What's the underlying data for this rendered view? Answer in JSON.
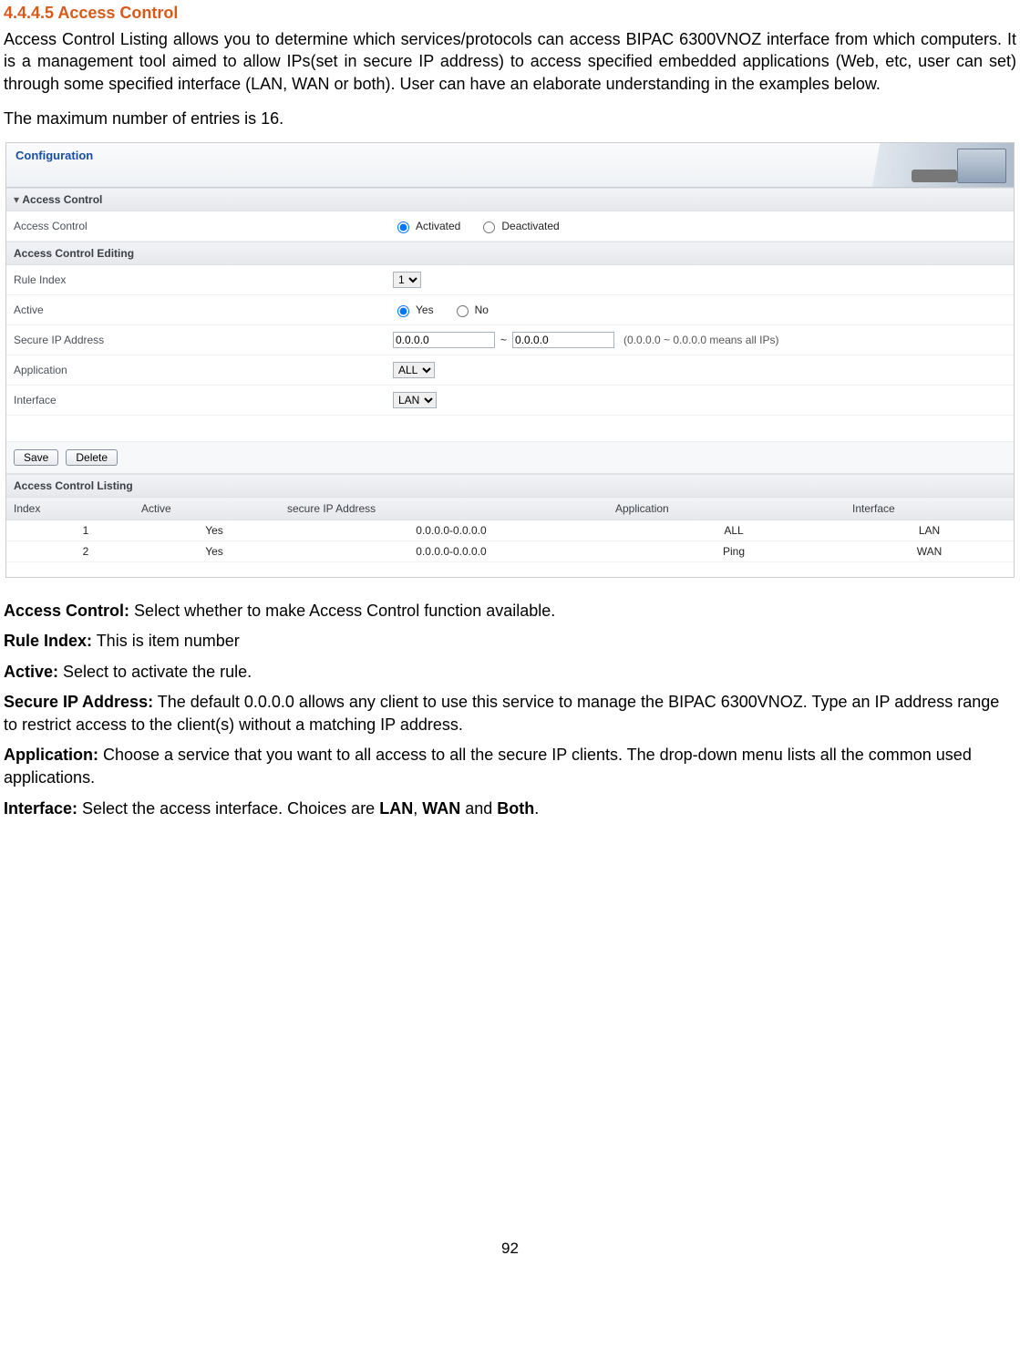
{
  "doc": {
    "heading": "4.4.4.5 Access Control",
    "intro_para": "Access Control Listing allows you to determine which services/protocols can access BIPAC 6300VNOZ interface from which computers. It is a management tool aimed to allow IPs(set in secure IP address) to access specified embedded applications (Web, etc, user can set) through some specified interface (LAN, WAN or both). User can have an elaborate understanding in the examples below.",
    "max_line": "The maximum number of entries is 16.",
    "defs": {
      "access_control_label": "Access Control:",
      "access_control_text": " Select whether to make Access Control function available.",
      "rule_index_label": "Rule Index:",
      "rule_index_text": " This is item number",
      "active_label": "Active:",
      "active_text": " Select to activate the rule.",
      "secure_ip_label": "Secure IP Address:",
      "secure_ip_text": " The default 0.0.0.0 allows any client to use this service to manage the BIPAC 6300VNOZ. Type an IP address range to restrict access to the client(s) without a matching IP address.",
      "application_label": "Application:",
      "application_text": " Choose a service that you want to all access to all the secure IP clients. The drop-down menu lists all the common used applications.",
      "interface_label": "Interface:",
      "interface_text_pre": " Select the access interface. Choices are ",
      "interface_opt1": "LAN",
      "interface_sep1": ", ",
      "interface_opt2": "WAN",
      "interface_sep2": " and ",
      "interface_opt3": "Both",
      "interface_post": "."
    },
    "page_number": "92"
  },
  "panel": {
    "header_title": "Configuration",
    "sections": {
      "access_control": "Access Control",
      "editing": "Access Control Editing",
      "listing": "Access Control Listing"
    },
    "rows": {
      "access_control": "Access Control",
      "rule_index": "Rule Index",
      "active": "Active",
      "secure_ip": "Secure IP Address",
      "application": "Application",
      "interface": "Interface"
    },
    "radio": {
      "activated": "Activated",
      "deactivated": "Deactivated",
      "yes": "Yes",
      "no": "No"
    },
    "values": {
      "rule_index": "1",
      "ip_from": "0.0.0.0",
      "ip_to": "0.0.0.0",
      "ip_hint": "(0.0.0.0 ~ 0.0.0.0 means all IPs)",
      "tilde": "~",
      "application_sel": "ALL",
      "interface_sel": "LAN"
    },
    "buttons": {
      "save": "Save",
      "delete": "Delete"
    },
    "listing": {
      "headers": {
        "index": "Index",
        "active": "Active",
        "secure_ip": "secure IP Address",
        "application": "Application",
        "interface": "Interface"
      },
      "r1": {
        "index": "1",
        "active": "Yes",
        "ip": "0.0.0.0-0.0.0.0",
        "app": "ALL",
        "iface": "LAN"
      },
      "r2": {
        "index": "2",
        "active": "Yes",
        "ip": "0.0.0.0-0.0.0.0",
        "app": "Ping",
        "iface": "WAN"
      }
    }
  }
}
